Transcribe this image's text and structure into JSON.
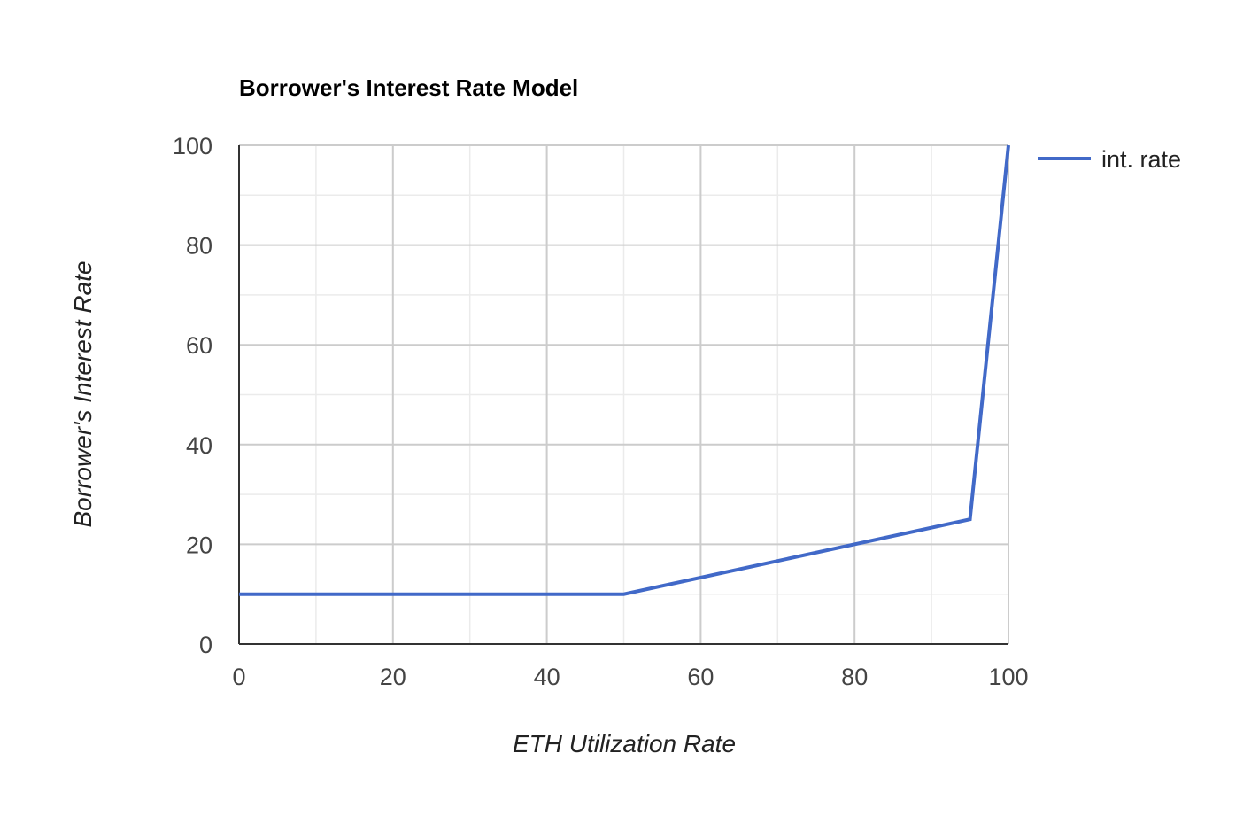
{
  "chart_data": {
    "type": "line",
    "title": "Borrower's Interest Rate Model",
    "xlabel": "ETH Utilization Rate",
    "ylabel": "Borrower's Interest Rate",
    "xlim": [
      0,
      100
    ],
    "ylim": [
      0,
      100
    ],
    "xticks": [
      0,
      20,
      40,
      60,
      80,
      100
    ],
    "yticks": [
      0,
      20,
      40,
      60,
      80,
      100
    ],
    "minor_grid_step": 10,
    "grid": true,
    "legend_position": "right",
    "series": [
      {
        "name": "int. rate",
        "color": "#4169c8",
        "x": [
          0,
          50,
          95,
          100
        ],
        "y": [
          10,
          10,
          25,
          100
        ]
      }
    ]
  }
}
